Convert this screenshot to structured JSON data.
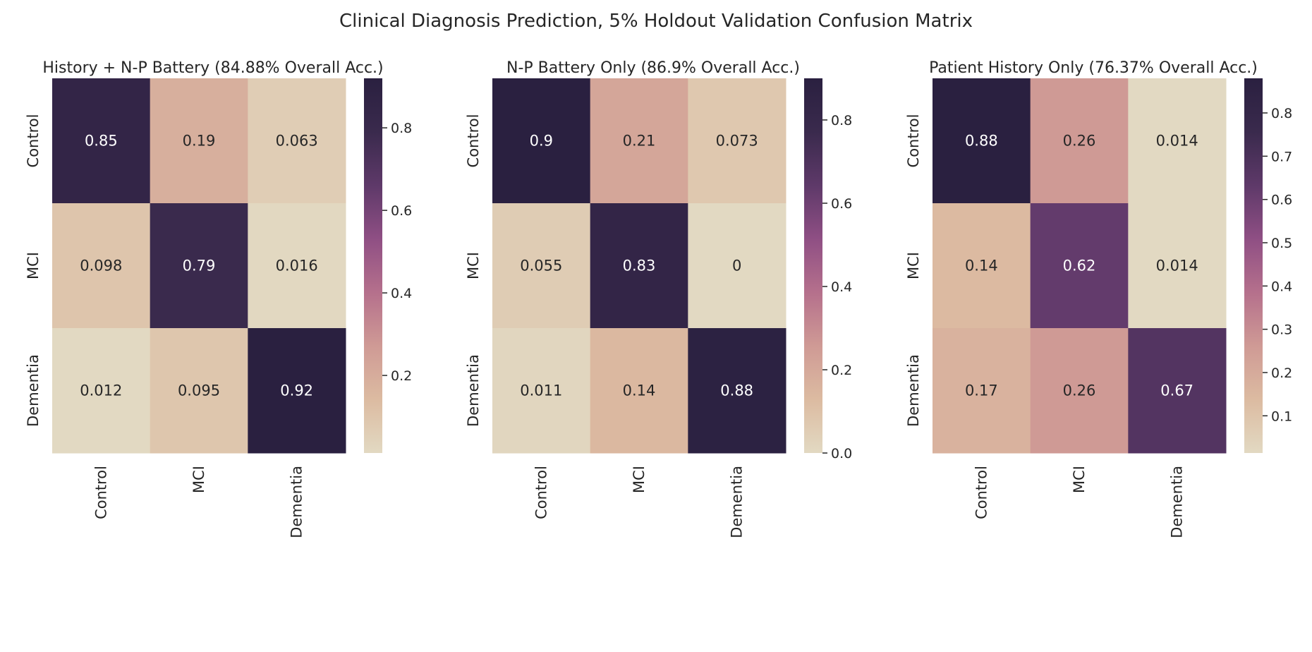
{
  "figure_title": "Clinical Diagnosis Prediction, 5% Holdout Validation Confusion Matrix",
  "chart_data": [
    {
      "type": "heatmap",
      "title": "History + N-P Battery (84.88% Overall Acc.)",
      "row_labels": [
        "Control",
        "MCI",
        "Dementia"
      ],
      "col_labels": [
        "Control",
        "MCI",
        "Dementia"
      ],
      "values": [
        [
          0.85,
          0.19,
          0.063
        ],
        [
          0.098,
          0.79,
          0.016
        ],
        [
          0.012,
          0.095,
          0.92
        ]
      ],
      "value_labels": [
        [
          "0.85",
          "0.19",
          "0.063"
        ],
        [
          "0.098",
          "0.79",
          "0.016"
        ],
        [
          "0.012",
          "0.095",
          "0.92"
        ]
      ],
      "colorbar": {
        "min": 0.012,
        "max": 0.92,
        "ticks": [
          0.2,
          0.4,
          0.6,
          0.8
        ],
        "tick_labels": [
          "0.2",
          "0.4",
          "0.6",
          "0.8"
        ]
      }
    },
    {
      "type": "heatmap",
      "title": "N-P Battery Only (86.9% Overall Acc.)",
      "row_labels": [
        "Control",
        "MCI",
        "Dementia"
      ],
      "col_labels": [
        "Control",
        "MCI",
        "Dementia"
      ],
      "values": [
        [
          0.9,
          0.21,
          0.073
        ],
        [
          0.055,
          0.83,
          0
        ],
        [
          0.011,
          0.14,
          0.88
        ]
      ],
      "value_labels": [
        [
          "0.9",
          "0.21",
          "0.073"
        ],
        [
          "0.055",
          "0.83",
          "0"
        ],
        [
          "0.011",
          "0.14",
          "0.88"
        ]
      ],
      "colorbar": {
        "min": 0,
        "max": 0.9,
        "ticks": [
          0.0,
          0.2,
          0.4,
          0.6,
          0.8
        ],
        "tick_labels": [
          "0.0",
          "0.2",
          "0.4",
          "0.6",
          "0.8"
        ]
      }
    },
    {
      "type": "heatmap",
      "title": "Patient History Only (76.37% Overall Acc.)",
      "row_labels": [
        "Control",
        "MCI",
        "Dementia"
      ],
      "col_labels": [
        "Control",
        "MCI",
        "Dementia"
      ],
      "values": [
        [
          0.88,
          0.26,
          0.014
        ],
        [
          0.14,
          0.62,
          0.014
        ],
        [
          0.17,
          0.26,
          0.67
        ]
      ],
      "value_labels": [
        [
          "0.88",
          "0.26",
          "0.014"
        ],
        [
          "0.14",
          "0.62",
          "0.014"
        ],
        [
          "0.17",
          "0.26",
          "0.67"
        ]
      ],
      "colorbar": {
        "min": 0.014,
        "max": 0.88,
        "ticks": [
          0.1,
          0.2,
          0.3,
          0.4,
          0.5,
          0.6,
          0.7,
          0.8
        ],
        "tick_labels": [
          "0.1",
          "0.2",
          "0.3",
          "0.4",
          "0.5",
          "0.6",
          "0.7",
          "0.8"
        ]
      }
    }
  ],
  "colormap": [
    "#e2d9c2",
    "#dcbba1",
    "#cf9a95",
    "#b5708c",
    "#8f4f84",
    "#5e3969",
    "#3a2a4d",
    "#2a2040"
  ]
}
